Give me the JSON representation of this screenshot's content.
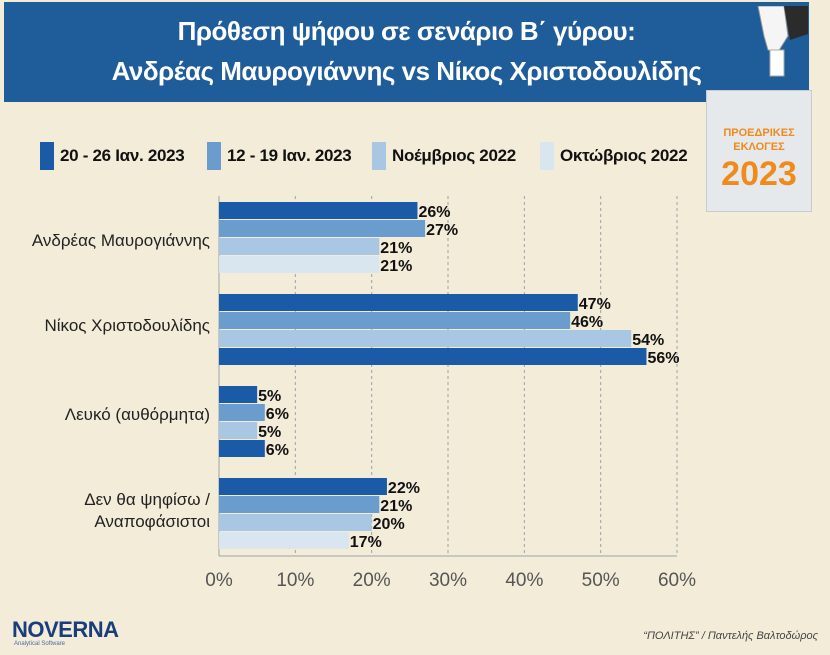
{
  "header": {
    "title_line1": "Πρόθεση ψήφου σε σενάριο Β΄ γύρου:",
    "title_line2": "Ανδρέας Μαυρογιάννης vs Νίκος Χριστοδουλίδης"
  },
  "badge": {
    "line1": "ΠΡΟΕΔΡΙΚΕΣ",
    "line2": "ΕΚΛΟΓΕΣ",
    "year": "2023",
    "color": "#f08a1a"
  },
  "footer": {
    "logo": "NOVERNA",
    "logo_sub": "Analytical Software",
    "credit": "“ΠΟΛΙΤΗΣ” / Παντελής Βαλτοδώρος"
  },
  "chart_data": {
    "type": "bar",
    "orientation": "horizontal",
    "title": "Πρόθεση ψήφου σε σενάριο Β΄ γύρου: Ανδρέας Μαυρογιάννης vs Νίκος Χριστοδουλίδης",
    "categories": [
      "Ανδρέας Μαυρογιάννης",
      "Νίκος Χριστοδουλίδης",
      "Λευκό (αυθόρμητα)",
      "Δεν θα ψηφίσω / Αναποφάσιστοι"
    ],
    "series": [
      {
        "name": "20 - 26 Ιαν. 2023",
        "values": [
          26,
          47,
          5,
          22
        ],
        "color": "#1a5aa6"
      },
      {
        "name": "12 - 19 Ιαν. 2023",
        "values": [
          27,
          46,
          6,
          21
        ],
        "color": "#6a9ccd"
      },
      {
        "name": "Νοέμβριος 2022",
        "values": [
          21,
          54,
          5,
          20
        ],
        "color": "#a9c6e2"
      },
      {
        "name": "Οκτώβριος 2022",
        "values": [
          21,
          56,
          6,
          17
        ],
        "color": "#d9e5ef"
      }
    ],
    "bar_colors_override": {
      "Νίκος Χριστοδουλίδης": [
        "#1a5aa6",
        "#6a9ccd",
        "#a9c6e2",
        "#1a5aa6"
      ],
      "Λευκό (αυθόρμητα)": [
        "#1a5aa6",
        "#6a9ccd",
        "#a9c6e2",
        "#1a5aa6"
      ]
    },
    "value_suffix": "%",
    "xlim": [
      0,
      60
    ],
    "xticks": [
      "0%",
      "10%",
      "20%",
      "30%",
      "40%",
      "50%",
      "60%"
    ],
    "grid": "vertical-dashed",
    "legend_position": "top"
  }
}
